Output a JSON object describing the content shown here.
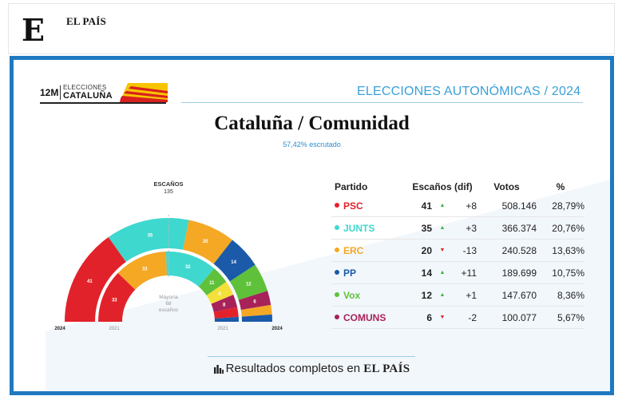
{
  "site": {
    "logo_letter": "E",
    "name": "EL PAÍS"
  },
  "widget": {
    "brand": {
      "tag": "12M",
      "line1": "ELECCIONES",
      "line2": "CATALUÑA"
    },
    "header_right": "ELECCIONES AUTONÓMICAS / 2024",
    "title": "Cataluña / Comunidad",
    "subtitle": "57,42% escrutado",
    "table": {
      "headers": [
        "Partido",
        "Escaños (dif)",
        "Votos",
        "%"
      ],
      "rows": [
        {
          "party": "PSC",
          "color": "#e2222a",
          "seats": "41",
          "trend": "up",
          "dif": "+8",
          "votes": "508.146",
          "pct": "28,79%"
        },
        {
          "party": "JUNTS",
          "color": "#3ed8cf",
          "seats": "35",
          "trend": "up",
          "dif": "+3",
          "votes": "366.374",
          "pct": "20,76%"
        },
        {
          "party": "ERC",
          "color": "#f4a824",
          "seats": "20",
          "trend": "down",
          "dif": "-13",
          "votes": "240.528",
          "pct": "13,63%"
        },
        {
          "party": "PP",
          "color": "#1a5aa8",
          "seats": "14",
          "trend": "up",
          "dif": "+11",
          "votes": "189.699",
          "pct": "10,75%"
        },
        {
          "party": "Vox",
          "color": "#5fc13a",
          "seats": "12",
          "trend": "up",
          "dif": "+1",
          "votes": "147.670",
          "pct": "8,36%"
        },
        {
          "party": "COMUNS",
          "color": "#a8225a",
          "seats": "6",
          "trend": "down",
          "dif": "-2",
          "votes": "100.077",
          "pct": "5,67%"
        }
      ]
    },
    "footer": {
      "text": "Resultados completos en",
      "brand": "EL PAÍS"
    }
  },
  "chart_data": {
    "type": "hemicycle",
    "total_label": "ESCAÑOS",
    "total": "135",
    "majority_label_1": "Mayoría",
    "majority_value": "68",
    "majority_label_2": "escaños",
    "rings": [
      {
        "year": "2024",
        "series": [
          {
            "party": "PSC",
            "seats": 41,
            "color": "#e2222a",
            "shown": "41"
          },
          {
            "party": "JUNTS",
            "seats": 35,
            "color": "#3ed8cf",
            "shown": "35"
          },
          {
            "party": "ERC",
            "seats": 20,
            "color": "#f4a824",
            "shown": "20"
          },
          {
            "party": "PP",
            "seats": 14,
            "color": "#1a5aa8",
            "shown": "14"
          },
          {
            "party": "Vox",
            "seats": 12,
            "color": "#5fc13a",
            "shown": "12"
          },
          {
            "party": "COMUNS",
            "seats": 6,
            "color": "#a8225a",
            "shown": "6"
          },
          {
            "party": "Other",
            "seats": 4,
            "color": "#f4a824",
            "shown": ""
          },
          {
            "party": "Other",
            "seats": 3,
            "color": "#1a5aa8",
            "shown": ""
          }
        ]
      },
      {
        "year": "2021",
        "series": [
          {
            "party": "PSC",
            "seats": 33,
            "color": "#e2222a",
            "shown": "33"
          },
          {
            "party": "ERC",
            "seats": 33,
            "color": "#f4a824",
            "shown": "33"
          },
          {
            "party": "JUNTS",
            "seats": 32,
            "color": "#3ed8cf",
            "shown": "32"
          },
          {
            "party": "Vox",
            "seats": 11,
            "color": "#5fc13a",
            "shown": "11"
          },
          {
            "party": "Other",
            "seats": 9,
            "color": "#f4e03a",
            "shown": "9"
          },
          {
            "party": "COMUNS",
            "seats": 8,
            "color": "#a8225a",
            "shown": "8"
          },
          {
            "party": "Other",
            "seats": 6,
            "color": "#e2222a",
            "shown": ""
          },
          {
            "party": "PP",
            "seats": 3,
            "color": "#1a5aa8",
            "shown": ""
          }
        ]
      }
    ]
  }
}
